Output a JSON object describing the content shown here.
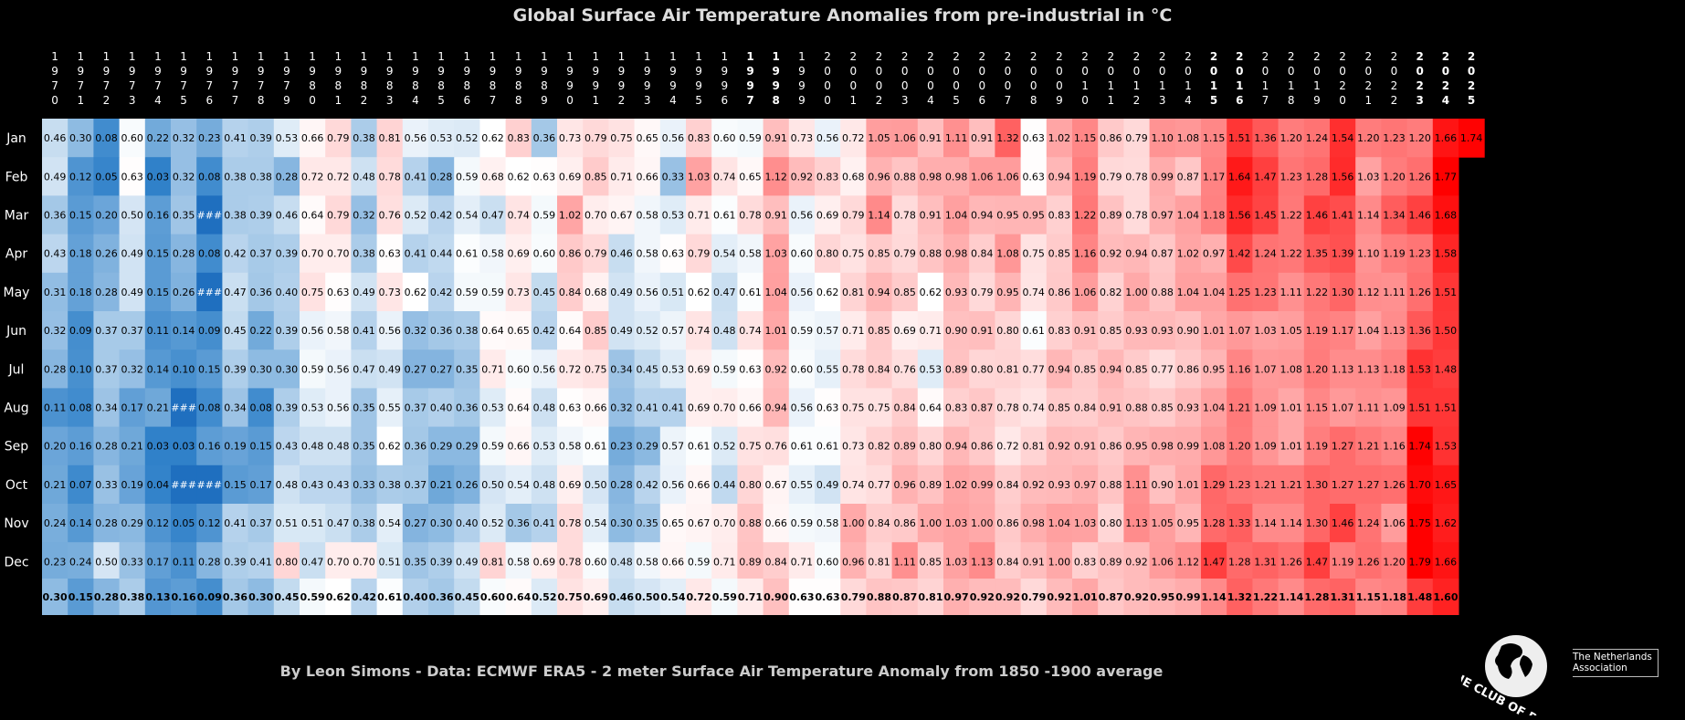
{
  "title": "Global Surface Air Temperature Anomalies from pre-industrial in °C",
  "credit": "By Leon Simons - Data: ECMWF ERA5 - 2 meter Surface Air Temperature Anomaly from 1850 -1900 average",
  "logo": {
    "org": "THE CLUB OF ROME",
    "line1": "The Netherlands",
    "line2": "Association"
  },
  "colors": {
    "cold": "#2c7fc8",
    "neutral": "#ffffff",
    "warm": "#ff0000",
    "background": "#000000"
  },
  "chart_data": {
    "type": "heatmap",
    "title": "Global Surface Air Temperature Anomalies from pre-industrial in °C",
    "x": [
      "1970",
      "1971",
      "1972",
      "1973",
      "1974",
      "1975",
      "1976",
      "1977",
      "1978",
      "1979",
      "1980",
      "1981",
      "1982",
      "1983",
      "1984",
      "1985",
      "1986",
      "1987",
      "1988",
      "1989",
      "1990",
      "1991",
      "1992",
      "1993",
      "1994",
      "1995",
      "1996",
      "1997",
      "1998",
      "1999",
      "2000",
      "2001",
      "2002",
      "2003",
      "2004",
      "2005",
      "2006",
      "2007",
      "2008",
      "2009",
      "2010",
      "2011",
      "2012",
      "2013",
      "2014",
      "2015",
      "2016",
      "2017",
      "2018",
      "2019",
      "2020",
      "2021",
      "2022",
      "2023",
      "2024",
      "2025"
    ],
    "bold_years": [
      "1997",
      "1998",
      "2015",
      "2016",
      "2023",
      "2024",
      "2025"
    ],
    "months": [
      "Jan",
      "Feb",
      "Mar",
      "Apr",
      "May",
      "Jun",
      "Jul",
      "Aug",
      "Sep",
      "Oct",
      "Nov",
      "Dec"
    ],
    "overflow_label": "###",
    "unit": "°C",
    "values": [
      [
        0.46,
        0.3,
        0.08,
        0.6,
        0.22,
        0.32,
        0.23,
        0.41,
        0.39,
        0.53,
        0.66,
        0.79,
        0.38,
        0.81,
        0.56,
        0.53,
        0.52,
        0.62,
        0.83,
        0.36,
        0.73,
        0.79,
        0.75,
        0.65,
        0.56,
        0.83,
        0.6,
        0.59,
        0.91,
        0.73,
        0.56,
        0.72,
        1.05,
        1.06,
        0.91,
        1.11,
        0.91,
        1.32,
        0.63,
        1.02,
        1.15,
        0.86,
        0.79,
        1.1,
        1.08,
        1.15,
        1.51,
        1.36,
        1.2,
        1.24,
        1.54,
        1.2,
        1.23,
        1.2,
        1.66,
        1.74
      ],
      [
        0.49,
        0.12,
        0.05,
        0.63,
        0.03,
        0.32,
        0.08,
        0.38,
        0.38,
        0.28,
        0.72,
        0.72,
        0.48,
        0.78,
        0.41,
        0.28,
        0.59,
        0.68,
        0.62,
        0.63,
        0.69,
        0.85,
        0.71,
        0.66,
        0.33,
        1.03,
        0.74,
        0.65,
        1.12,
        0.92,
        0.83,
        0.68,
        0.96,
        0.88,
        0.98,
        0.98,
        1.06,
        1.06,
        0.63,
        0.94,
        1.19,
        0.79,
        0.78,
        0.99,
        0.87,
        1.17,
        1.64,
        1.47,
        1.23,
        1.28,
        1.56,
        1.03,
        1.2,
        1.26,
        1.77,
        null
      ],
      [
        0.36,
        0.15,
        0.2,
        0.5,
        0.16,
        0.35,
        null,
        0.38,
        0.39,
        0.46,
        0.64,
        0.79,
        0.32,
        0.76,
        0.52,
        0.42,
        0.54,
        0.47,
        0.74,
        0.59,
        1.02,
        0.7,
        0.67,
        0.58,
        0.53,
        0.71,
        0.61,
        0.78,
        0.91,
        0.56,
        0.69,
        0.79,
        1.14,
        0.78,
        0.91,
        1.04,
        0.94,
        0.95,
        0.95,
        0.83,
        1.22,
        0.89,
        0.78,
        0.97,
        1.04,
        1.18,
        1.56,
        1.45,
        1.22,
        1.46,
        1.41,
        1.14,
        1.34,
        1.46,
        1.68,
        null
      ],
      [
        0.43,
        0.18,
        0.26,
        0.49,
        0.15,
        0.28,
        0.08,
        0.42,
        0.37,
        0.39,
        0.7,
        0.7,
        0.38,
        0.63,
        0.41,
        0.44,
        0.61,
        0.58,
        0.69,
        0.6,
        0.86,
        0.79,
        0.46,
        0.58,
        0.63,
        0.79,
        0.54,
        0.58,
        1.03,
        0.6,
        0.8,
        0.75,
        0.85,
        0.79,
        0.88,
        0.98,
        0.84,
        1.08,
        0.75,
        0.85,
        1.16,
        0.92,
        0.94,
        0.87,
        1.02,
        0.97,
        1.42,
        1.24,
        1.22,
        1.35,
        1.39,
        1.1,
        1.19,
        1.23,
        1.58,
        null
      ],
      [
        0.31,
        0.18,
        0.28,
        0.49,
        0.15,
        0.26,
        null,
        0.47,
        0.36,
        0.4,
        0.75,
        0.63,
        0.49,
        0.73,
        0.62,
        0.42,
        0.59,
        0.59,
        0.73,
        0.45,
        0.84,
        0.68,
        0.49,
        0.56,
        0.51,
        0.62,
        0.47,
        0.61,
        1.04,
        0.56,
        0.62,
        0.81,
        0.94,
        0.85,
        0.62,
        0.93,
        0.79,
        0.95,
        0.74,
        0.86,
        1.06,
        0.82,
        1.0,
        0.88,
        1.04,
        1.04,
        1.25,
        1.23,
        1.11,
        1.22,
        1.3,
        1.12,
        1.11,
        1.26,
        1.51,
        null
      ],
      [
        0.32,
        0.09,
        0.37,
        0.37,
        0.11,
        0.14,
        0.09,
        0.45,
        0.22,
        0.39,
        0.56,
        0.58,
        0.41,
        0.56,
        0.32,
        0.36,
        0.38,
        0.64,
        0.65,
        0.42,
        0.64,
        0.85,
        0.49,
        0.52,
        0.57,
        0.74,
        0.48,
        0.74,
        1.01,
        0.59,
        0.57,
        0.71,
        0.85,
        0.69,
        0.71,
        0.9,
        0.91,
        0.8,
        0.61,
        0.83,
        0.91,
        0.85,
        0.93,
        0.93,
        0.9,
        1.01,
        1.07,
        1.03,
        1.05,
        1.19,
        1.17,
        1.04,
        1.13,
        1.36,
        1.5,
        null
      ],
      [
        0.28,
        0.1,
        0.37,
        0.32,
        0.14,
        0.1,
        0.15,
        0.39,
        0.3,
        0.3,
        0.59,
        0.56,
        0.47,
        0.49,
        0.27,
        0.27,
        0.35,
        0.71,
        0.6,
        0.56,
        0.72,
        0.75,
        0.34,
        0.45,
        0.53,
        0.69,
        0.59,
        0.63,
        0.92,
        0.6,
        0.55,
        0.78,
        0.84,
        0.76,
        0.53,
        0.89,
        0.8,
        0.81,
        0.77,
        0.94,
        0.85,
        0.94,
        0.85,
        0.77,
        0.86,
        0.95,
        1.16,
        1.07,
        1.08,
        1.2,
        1.13,
        1.13,
        1.18,
        1.53,
        1.48,
        null
      ],
      [
        0.11,
        0.08,
        0.34,
        0.17,
        0.21,
        null,
        0.08,
        0.34,
        0.08,
        0.39,
        0.53,
        0.56,
        0.35,
        0.55,
        0.37,
        0.4,
        0.36,
        0.53,
        0.64,
        0.48,
        0.63,
        0.66,
        0.32,
        0.41,
        0.41,
        0.69,
        0.7,
        0.66,
        0.94,
        0.56,
        0.63,
        0.75,
        0.75,
        0.84,
        0.64,
        0.83,
        0.87,
        0.78,
        0.74,
        0.85,
        0.84,
        0.91,
        0.88,
        0.85,
        0.93,
        1.04,
        1.21,
        1.09,
        1.01,
        1.15,
        1.07,
        1.11,
        1.09,
        1.51,
        1.51,
        null
      ],
      [
        0.2,
        0.16,
        0.28,
        0.21,
        0.03,
        0.03,
        0.16,
        0.19,
        0.15,
        0.43,
        0.48,
        0.48,
        0.35,
        0.62,
        0.36,
        0.29,
        0.29,
        0.59,
        0.66,
        0.53,
        0.58,
        0.61,
        0.23,
        0.29,
        0.57,
        0.61,
        0.52,
        0.75,
        0.76,
        0.61,
        0.61,
        0.73,
        0.82,
        0.89,
        0.8,
        0.94,
        0.86,
        0.72,
        0.81,
        0.92,
        0.91,
        0.86,
        0.95,
        0.98,
        0.99,
        1.08,
        1.2,
        1.09,
        1.01,
        1.19,
        1.27,
        1.21,
        1.16,
        1.74,
        1.53,
        null
      ],
      [
        0.21,
        0.07,
        0.33,
        0.19,
        0.04,
        null,
        null,
        0.15,
        0.17,
        0.48,
        0.43,
        0.43,
        0.33,
        0.38,
        0.37,
        0.21,
        0.26,
        0.5,
        0.54,
        0.48,
        0.69,
        0.5,
        0.28,
        0.42,
        0.56,
        0.66,
        0.44,
        0.8,
        0.67,
        0.55,
        0.49,
        0.74,
        0.77,
        0.96,
        0.89,
        1.02,
        0.99,
        0.84,
        0.92,
        0.93,
        0.97,
        0.88,
        1.11,
        0.9,
        1.01,
        1.29,
        1.23,
        1.21,
        1.21,
        1.3,
        1.27,
        1.27,
        1.26,
        1.7,
        1.65,
        null
      ],
      [
        0.24,
        0.14,
        0.28,
        0.29,
        0.12,
        0.05,
        0.12,
        0.41,
        0.37,
        0.51,
        0.51,
        0.47,
        0.38,
        0.54,
        0.27,
        0.3,
        0.4,
        0.52,
        0.36,
        0.41,
        0.78,
        0.54,
        0.3,
        0.35,
        0.65,
        0.67,
        0.7,
        0.88,
        0.66,
        0.59,
        0.58,
        1.0,
        0.84,
        0.86,
        1.0,
        1.03,
        1.0,
        0.86,
        0.98,
        1.04,
        1.03,
        0.8,
        1.13,
        1.05,
        0.95,
        1.28,
        1.33,
        1.14,
        1.14,
        1.3,
        1.46,
        1.24,
        1.06,
        1.75,
        1.62,
        null
      ],
      [
        0.23,
        0.24,
        0.5,
        0.33,
        0.17,
        0.11,
        0.28,
        0.39,
        0.41,
        0.8,
        0.47,
        0.7,
        0.7,
        0.51,
        0.35,
        0.39,
        0.49,
        0.81,
        0.58,
        0.69,
        0.78,
        0.6,
        0.48,
        0.58,
        0.66,
        0.59,
        0.71,
        0.89,
        0.84,
        0.71,
        0.6,
        0.96,
        0.81,
        1.11,
        0.85,
        1.03,
        1.13,
        0.84,
        0.91,
        1.0,
        0.83,
        0.89,
        0.92,
        1.06,
        1.12,
        1.47,
        1.28,
        1.31,
        1.26,
        1.47,
        1.19,
        1.26,
        1.2,
        1.79,
        1.66,
        null
      ]
    ],
    "annual": [
      0.3,
      0.15,
      0.28,
      0.38,
      0.13,
      0.16,
      0.09,
      0.36,
      0.3,
      0.45,
      0.59,
      0.62,
      0.42,
      0.61,
      0.4,
      0.36,
      0.45,
      0.6,
      0.64,
      0.52,
      0.75,
      0.69,
      0.46,
      0.5,
      0.54,
      0.72,
      0.59,
      0.71,
      0.9,
      0.63,
      0.63,
      0.79,
      0.88,
      0.87,
      0.81,
      0.97,
      0.92,
      0.92,
      0.79,
      0.92,
      1.01,
      0.87,
      0.92,
      0.95,
      0.99,
      1.14,
      1.32,
      1.22,
      1.14,
      1.28,
      1.31,
      1.15,
      1.18,
      1.48,
      1.6,
      null
    ]
  }
}
